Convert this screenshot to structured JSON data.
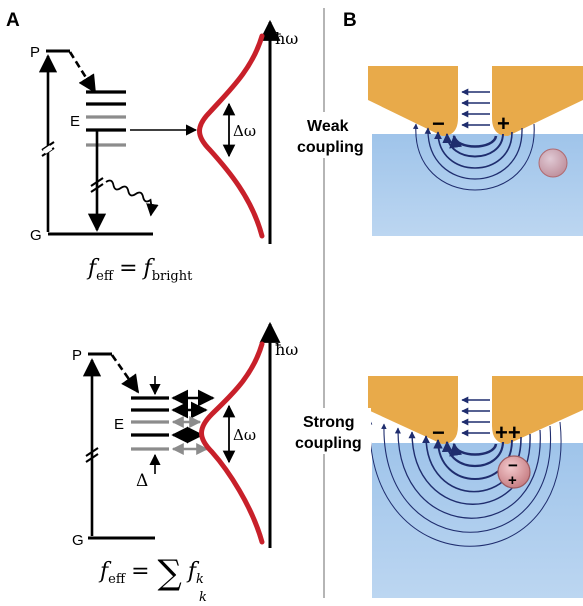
{
  "panel_a": {
    "letter": "A",
    "top": {
      "level_p": "P",
      "level_e": "E",
      "level_g": "G",
      "axis_label": "ħω",
      "width_label": "Δω",
      "formula_lhs": "f",
      "formula_lhs_sub": "eff",
      "formula_eq": "=",
      "formula_rhs": "f",
      "formula_rhs_sub": "bright"
    },
    "bottom": {
      "level_p": "P",
      "level_e": "E",
      "level_g": "G",
      "axis_label": "ħω",
      "width_label": "Δω",
      "splitting_label": "Δ",
      "formula_lhs": "f",
      "formula_lhs_sub": "eff",
      "formula_eq": "=",
      "formula_sum": "∑",
      "formula_sum_index": "k",
      "formula_rhs": "f",
      "formula_rhs_sub": "k"
    }
  },
  "panel_b": {
    "letter": "B",
    "weak_label_line1": "Weak",
    "weak_label_line2": "coupling",
    "strong_label_line1": "Strong",
    "strong_label_line2": "coupling",
    "minus": "−",
    "plus": "+",
    "plus_plus": "++"
  },
  "colors": {
    "gold": "#e8aa4a",
    "water": "#a6c9ec",
    "field_lines": "#1f2d6e",
    "lineshape": "#c8202a",
    "grey_levels": "#8c8c8c",
    "emitter": "#d9959a",
    "divider": "#b5b5b5"
  }
}
